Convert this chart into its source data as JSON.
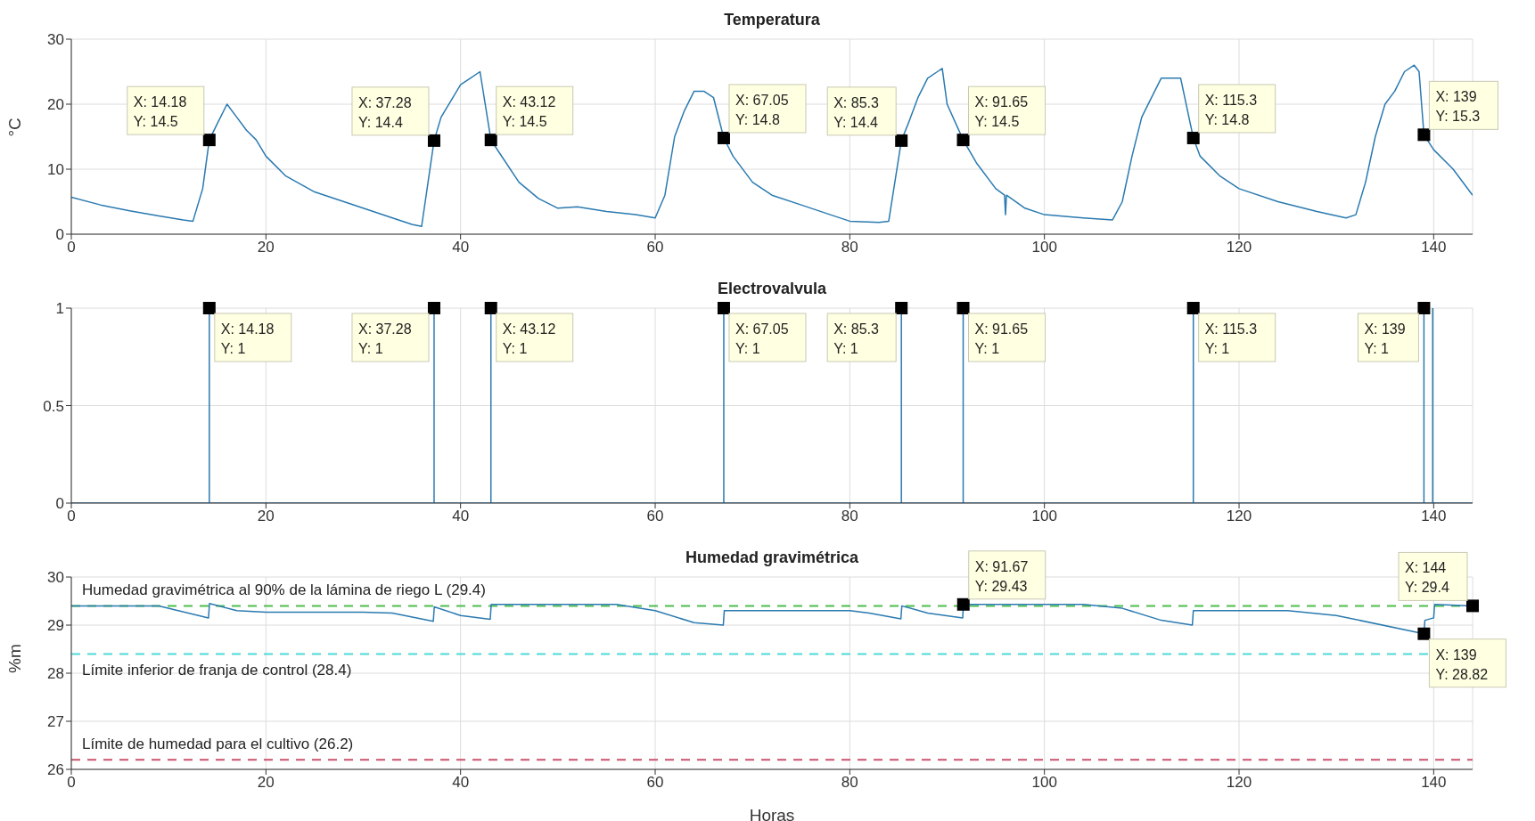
{
  "chart_data": [
    {
      "type": "line",
      "title": "Temperatura",
      "ylabel": "°C",
      "xlim": [
        0,
        144
      ],
      "ylim": [
        0,
        30
      ],
      "xticks": [
        0,
        20,
        40,
        60,
        80,
        100,
        120,
        140
      ],
      "yticks": [
        0,
        10,
        20,
        30
      ],
      "grid": true,
      "series": [
        {
          "color": "#2a7ab0",
          "x": [
            0,
            3,
            6,
            9,
            11.5,
            12.5,
            13.5,
            14.18,
            15,
            16,
            17,
            18,
            19,
            20,
            22,
            25,
            30,
            33,
            35,
            36,
            37.28,
            38,
            39,
            40,
            41,
            42,
            43.12,
            44,
            46,
            48,
            50,
            52,
            55,
            58,
            60,
            61,
            62,
            63,
            64,
            65,
            66,
            67.05,
            68,
            70,
            72,
            75,
            78,
            80,
            83,
            84,
            85.3,
            86,
            87,
            88,
            89,
            89.5,
            90,
            91.65,
            93,
            95,
            95.9,
            96,
            96.1,
            98,
            100,
            104,
            107,
            108,
            109,
            110,
            111,
            112,
            114,
            115.3,
            116,
            118,
            120,
            124,
            128,
            131,
            132,
            133,
            134,
            135,
            136,
            137,
            138,
            138.5,
            139,
            140,
            142,
            144
          ],
          "values": [
            5.7,
            4.5,
            3.6,
            2.8,
            2.2,
            2,
            7,
            14.5,
            17,
            20,
            18,
            16,
            14.5,
            12,
            9,
            6.5,
            4,
            2.5,
            1.5,
            1.2,
            14.4,
            18,
            20.5,
            23,
            24,
            25,
            14.5,
            12.5,
            8,
            5.5,
            4,
            4.2,
            3.5,
            3,
            2.5,
            6,
            15,
            19,
            22,
            22,
            21,
            14.8,
            12,
            8,
            6,
            4.5,
            3,
            2,
            1.8,
            2,
            14.4,
            17,
            21,
            24,
            25,
            25.5,
            20,
            14.5,
            11,
            7,
            6,
            3,
            6,
            4,
            3,
            2.5,
            2.2,
            5,
            12,
            18,
            21,
            24,
            24,
            14.8,
            12,
            9,
            7,
            5,
            3.5,
            2.5,
            3,
            8,
            15,
            20,
            22,
            25,
            26,
            25,
            15.3,
            13,
            10,
            6
          ]
        }
      ],
      "annotations": [
        {
          "text": "X: 14.18\nY: 14.5",
          "x": 14.18,
          "y": 14.5
        },
        {
          "text": "X: 37.28\nY: 14.4",
          "x": 37.28,
          "y": 14.4
        },
        {
          "text": "X: 43.12\nY: 14.5",
          "x": 43.12,
          "y": 14.5
        },
        {
          "text": "X: 67.05\nY: 14.8",
          "x": 67.05,
          "y": 14.8
        },
        {
          "text": "X: 85.3\nY: 14.4",
          "x": 85.3,
          "y": 14.4
        },
        {
          "text": "X: 91.65\nY: 14.5",
          "x": 91.65,
          "y": 14.5
        },
        {
          "text": "X: 115.3\nY: 14.8",
          "x": 115.3,
          "y": 14.8
        },
        {
          "text": "X: 139\nY: 15.3",
          "x": 139,
          "y": 15.3
        }
      ]
    },
    {
      "type": "line",
      "title": "Electrovalvula",
      "xlim": [
        0,
        144
      ],
      "ylim": [
        0,
        1
      ],
      "xticks": [
        0,
        20,
        40,
        60,
        80,
        100,
        120,
        140
      ],
      "yticks": [
        0,
        0.5,
        1
      ],
      "grid": true,
      "series": [
        {
          "color": "#2a7ab0",
          "x": [
            0,
            14.18,
            14.18,
            14.18,
            37.28,
            37.28,
            37.28,
            43.12,
            43.12,
            43.12,
            67.05,
            67.05,
            67.05,
            85.3,
            85.3,
            85.3,
            91.65,
            91.65,
            91.65,
            115.3,
            115.3,
            115.3,
            139,
            139,
            139,
            139.9,
            139.9,
            139.9,
            144
          ],
          "values": [
            0,
            0,
            1,
            0,
            0,
            1,
            0,
            0,
            1,
            0,
            0,
            1,
            0,
            0,
            1,
            0,
            0,
            1,
            0,
            0,
            1,
            0,
            0,
            1,
            0,
            0,
            1,
            0,
            0
          ]
        }
      ],
      "annotations": [
        {
          "text": "X: 14.18\nY: 1",
          "x": 14.18,
          "y": 1
        },
        {
          "text": "X: 37.28\nY: 1",
          "x": 37.28,
          "y": 1
        },
        {
          "text": "X: 43.12\nY: 1",
          "x": 43.12,
          "y": 1
        },
        {
          "text": "X: 67.05\nY: 1",
          "x": 67.05,
          "y": 1
        },
        {
          "text": "X: 85.3\nY: 1",
          "x": 85.3,
          "y": 1
        },
        {
          "text": "X: 91.65\nY: 1",
          "x": 91.65,
          "y": 1
        },
        {
          "text": "X: 115.3\nY: 1",
          "x": 115.3,
          "y": 1
        },
        {
          "text": "X: 139\nY: 1",
          "x": 139,
          "y": 1
        }
      ]
    },
    {
      "type": "line",
      "title": "Humedad gravimétrica",
      "xlabel": "Horas",
      "ylabel": "%m",
      "xlim": [
        0,
        144
      ],
      "ylim": [
        26,
        30
      ],
      "xticks": [
        0,
        20,
        40,
        60,
        80,
        100,
        120,
        140
      ],
      "yticks": [
        26,
        27,
        28,
        29,
        30
      ],
      "grid": true,
      "series": [
        {
          "color": "#2a7ab0",
          "x": [
            0,
            9,
            14.1,
            14.2,
            17,
            20,
            30,
            33,
            37.2,
            37.3,
            40,
            43.05,
            43.15,
            50,
            56,
            60,
            64,
            67,
            67.1,
            80,
            82,
            85.25,
            85.35,
            88,
            91.6,
            91.67,
            100,
            104,
            108,
            112,
            115.2,
            115.3,
            125,
            130,
            139,
            139.1,
            140,
            140.1,
            144
          ],
          "values": [
            29.4,
            29.4,
            29.15,
            29.45,
            29.3,
            29.27,
            29.27,
            29.25,
            29.08,
            29.38,
            29.2,
            29.12,
            29.43,
            29.43,
            29.43,
            29.3,
            29.05,
            29,
            29.3,
            29.3,
            29.25,
            29.13,
            29.4,
            29.25,
            29.15,
            29.43,
            29.43,
            29.43,
            29.35,
            29.1,
            29,
            29.3,
            29.3,
            29.2,
            28.82,
            29.1,
            29.15,
            29.43,
            29.4
          ]
        }
      ],
      "ref_lines": [
        {
          "axis": "y",
          "value": 29.4,
          "label": "Humedad gravimétrica al 90% de la lámina de riego L (29.4)",
          "color": "#4dbd4d",
          "line_style": "dashed"
        },
        {
          "axis": "y",
          "value": 28.4,
          "label": "Límite inferior de franja de control (28.4)",
          "color": "#4fd8d8",
          "line_style": "dashed"
        },
        {
          "axis": "y",
          "value": 26.2,
          "label": "Límite de humedad para el cultivo (26.2)",
          "color": "#c8546e",
          "line_style": "dashed"
        }
      ],
      "annotations": [
        {
          "text": "X: 91.67\nY: 29.43",
          "x": 91.67,
          "y": 29.43
        },
        {
          "text": "X: 139\nY: 28.82",
          "x": 139,
          "y": 28.82
        },
        {
          "text": "X: 144\nY: 29.4",
          "x": 144,
          "y": 29.4
        }
      ]
    }
  ]
}
